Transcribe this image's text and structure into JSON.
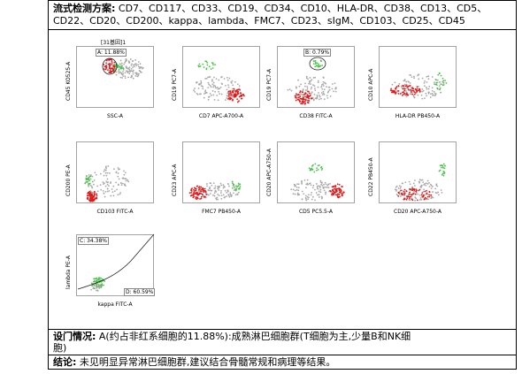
{
  "header": {
    "label": "流式检测方案:",
    "markers_line1": "CD7、CD117、CD33、CD19、CD34、CD10、HLA-DR、CD38、CD13、CD5、",
    "markers_line2": "CD22、CD20、CD200、kappa、lambda、FMC7、CD23、sIgM、CD103、CD25、CD45"
  },
  "plots": [
    {
      "id": "p1",
      "title": "[31基因]1",
      "ylabel": "CD45 KO525-A",
      "xlabel": "SSC-A",
      "gate": "A: 11.88%"
    },
    {
      "id": "p2",
      "ylabel": "CD19 PC7-A",
      "xlabel": "CD7 APC-A700-A"
    },
    {
      "id": "p3",
      "ylabel": "CD19 PC7-A",
      "xlabel": "CD38 FITC-A",
      "gate": "B: 0.79%"
    },
    {
      "id": "p4",
      "ylabel": "CD10 APC-A",
      "xlabel": "HLA-DR PB450-A"
    },
    {
      "id": "p5",
      "ylabel": "CD200 PE-A",
      "xlabel": "CD103 FITC-A"
    },
    {
      "id": "p6",
      "ylabel": "CD23 APC-A",
      "xlabel": "FMC7 PB450-A"
    },
    {
      "id": "p7",
      "ylabel": "CD20 APC-A750-A",
      "xlabel": "CD5 PC5.5-A"
    },
    {
      "id": "p8",
      "ylabel": "CD22 PB450-A",
      "xlabel": "CD20 APC-A750-A"
    },
    {
      "id": "p9",
      "ylabel": "lambda PE-A",
      "xlabel": "kappa FITC-A",
      "gate": "C: 34.38%",
      "gate2": "D: 60.59%"
    }
  ],
  "gating": {
    "label": "设门情况:",
    "text_line1": "A(约占非红系细胞的11.88%):成熟淋巴细胞群(T细胞为主,少量B和NK细",
    "text_line2": "胞)"
  },
  "conclusion": {
    "label": "结论:",
    "text": "未见明显异常淋巴细胞群,建议结合骨髓常规和病理等结果。"
  },
  "colors": {
    "gray": "#a8a8a8",
    "red": "#e01818",
    "green": "#4cc24c"
  }
}
